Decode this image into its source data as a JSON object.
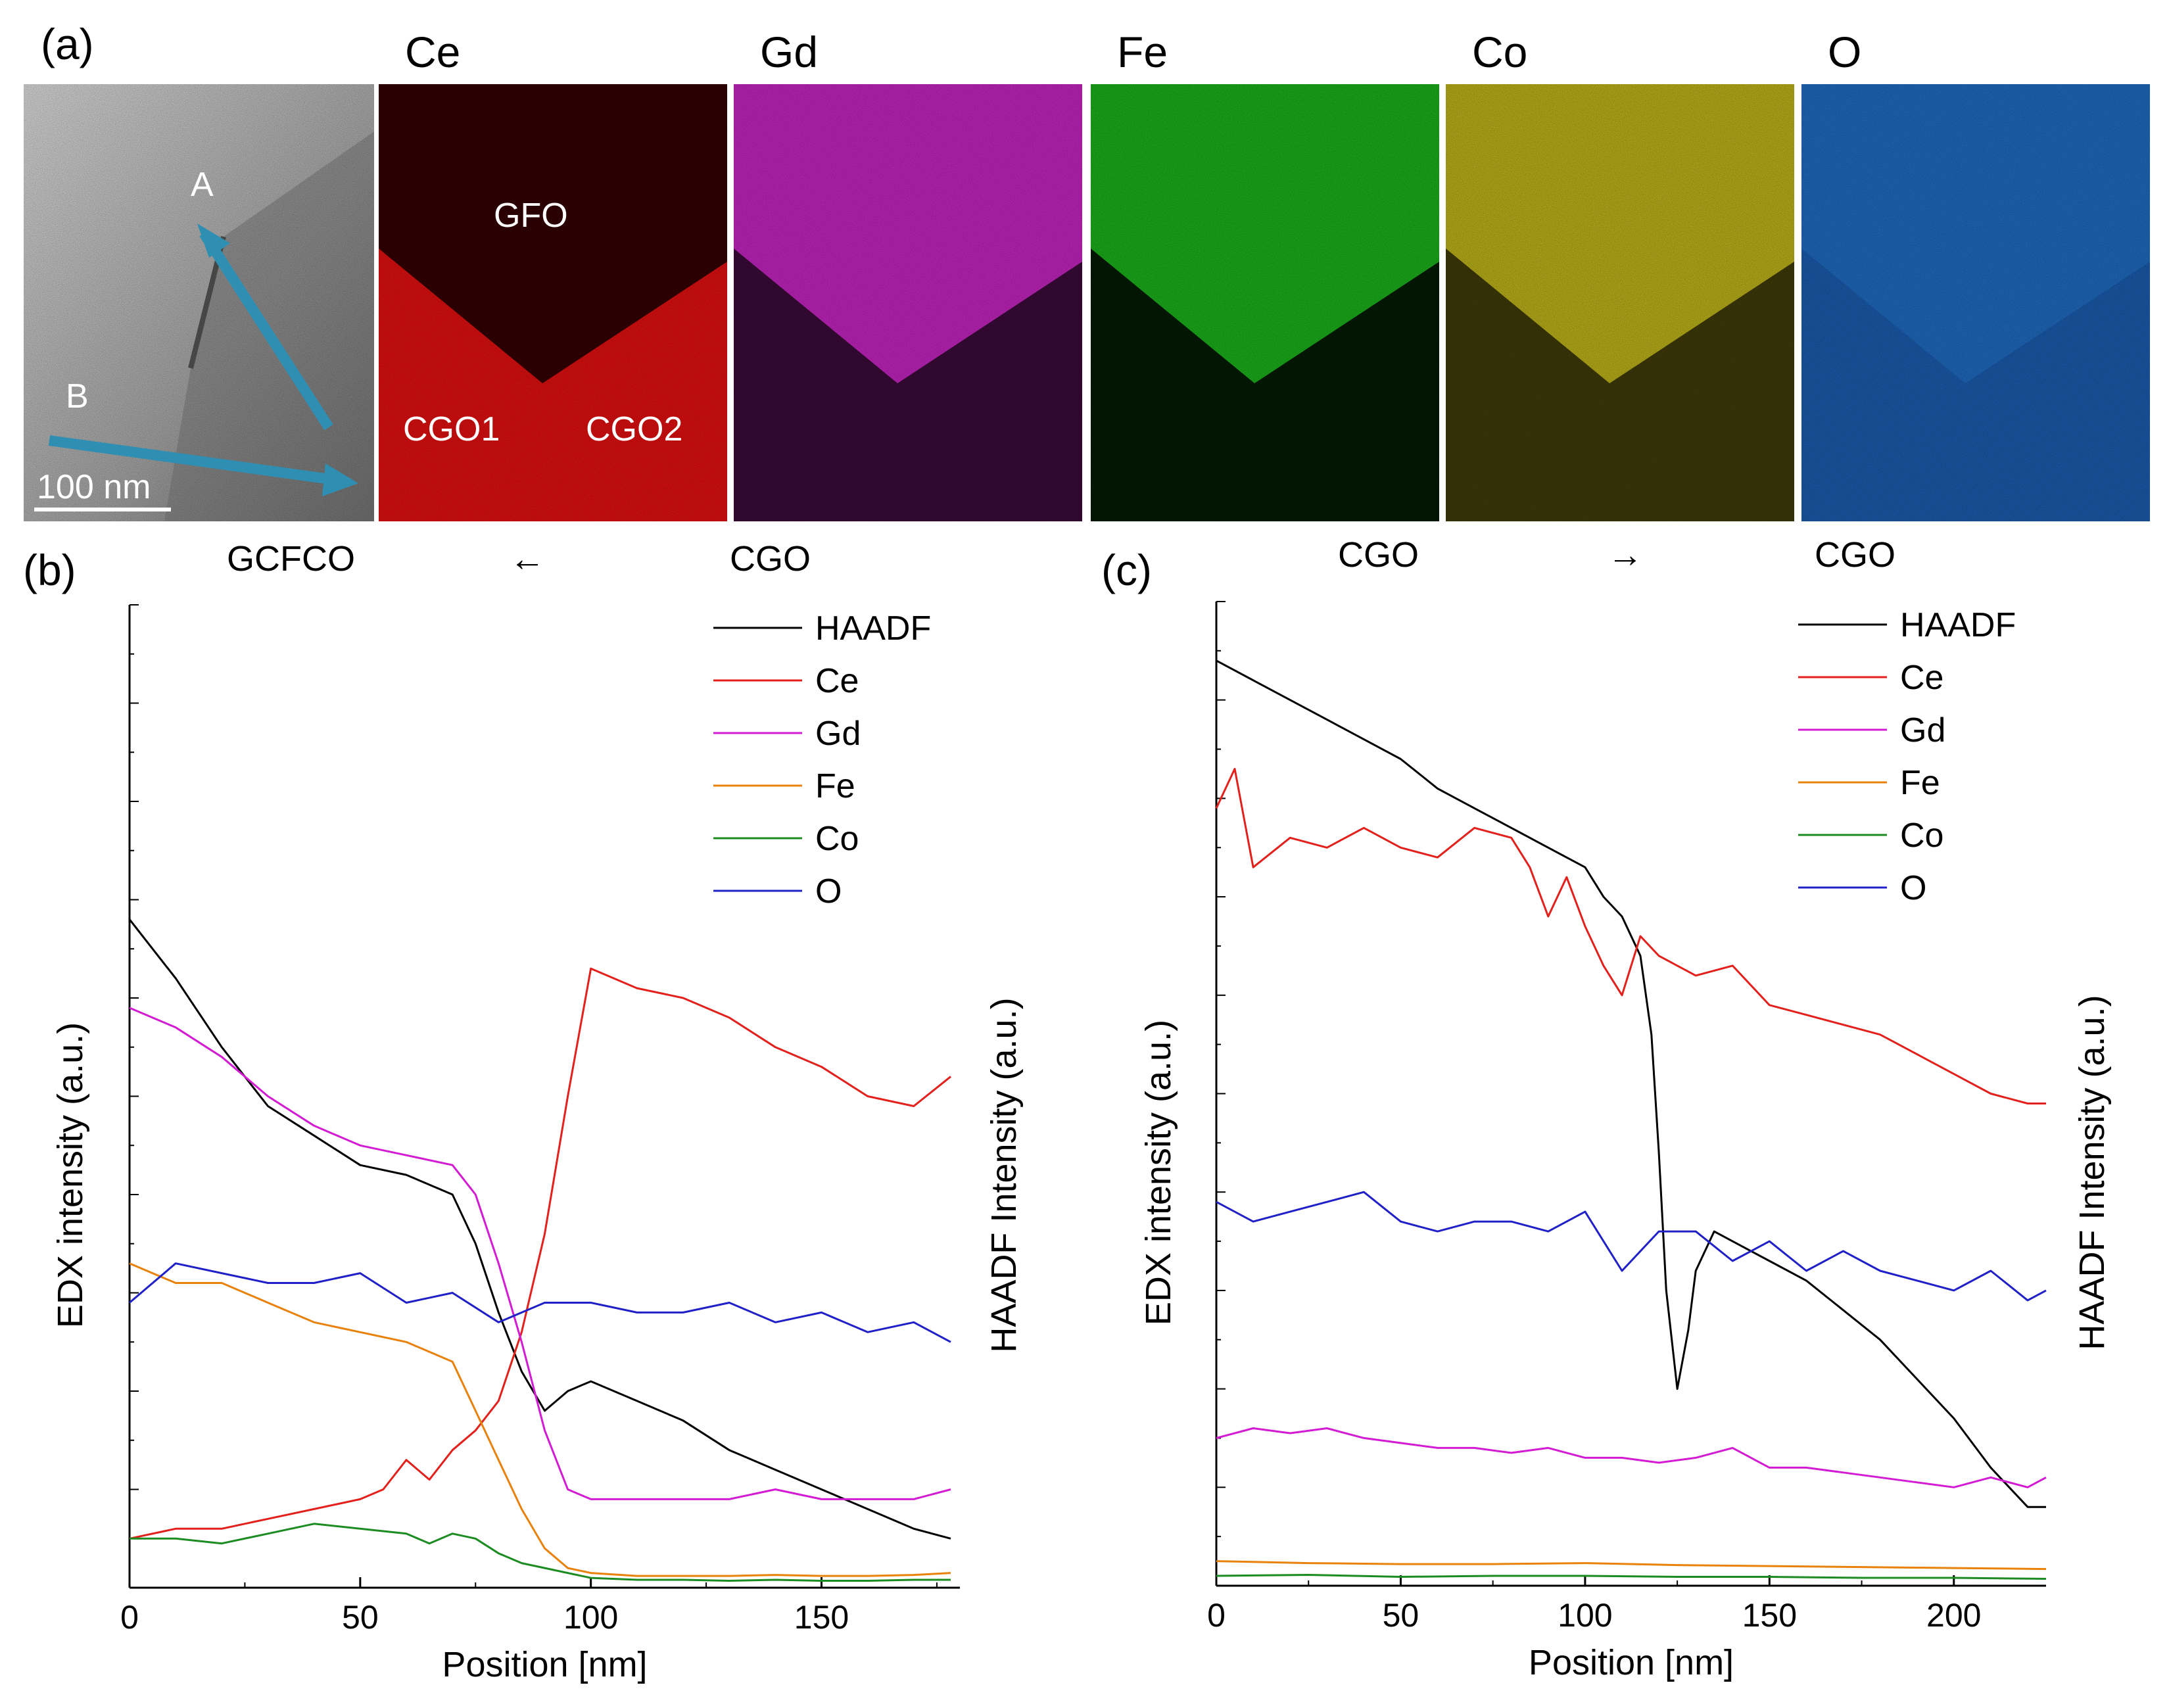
{
  "panel_a": {
    "label": "(a)",
    "haadf_labels": {
      "a": "A",
      "b": "B",
      "scalebar": "100 nm"
    },
    "maps": [
      {
        "title": "Ce",
        "top": "#330003",
        "bottom": "#e20f10"
      },
      {
        "title": "Gd",
        "top": "#c424c0",
        "bottom": "#3a0a39"
      },
      {
        "title": "Fe",
        "top": "#1bb11b",
        "bottom": "#051a05"
      },
      {
        "title": "Co",
        "top": "#bdb31a",
        "bottom": "#3f3a08"
      },
      {
        "title": "O",
        "top": "#1f6bc0",
        "bottom": "#1a5cae"
      }
    ],
    "ce_labels": {
      "gfo": "GFO",
      "cgo1": "CGO1",
      "cgo2": "CGO2"
    },
    "arrow_color": "#2f8fb3"
  },
  "header_b": {
    "left": "GCFCO",
    "arrow": "←",
    "right": "CGO"
  },
  "header_c": {
    "left": "CGO",
    "arrow": "→",
    "right": "CGO"
  },
  "chart_data": [
    {
      "type": "line",
      "panel_label": "(b)",
      "xlabel": "Position [nm]",
      "ylabel_left": "EDX intensity (a.u.)",
      "ylabel_right": "HAADF Intensity (a.u.)",
      "xlim": [
        0,
        180
      ],
      "ylim": [
        0,
        100
      ],
      "xticks": [
        0,
        50,
        100,
        150
      ],
      "legend": "top-right",
      "series": [
        {
          "name": "HAADF",
          "color": "#000000",
          "x": [
            0,
            10,
            20,
            30,
            40,
            50,
            60,
            70,
            75,
            80,
            85,
            90,
            95,
            100,
            110,
            120,
            130,
            140,
            150,
            160,
            170,
            178
          ],
          "y": [
            68,
            62,
            55,
            49,
            46,
            43,
            42,
            40,
            35,
            28,
            22,
            18,
            20,
            21,
            19,
            17,
            14,
            12,
            10,
            8,
            6,
            5
          ]
        },
        {
          "name": "Ce",
          "color": "#e3201b",
          "x": [
            0,
            10,
            20,
            30,
            40,
            50,
            55,
            60,
            65,
            70,
            75,
            80,
            85,
            90,
            95,
            100,
            110,
            120,
            130,
            140,
            150,
            160,
            170,
            178
          ],
          "y": [
            5,
            6,
            6,
            7,
            8,
            9,
            10,
            13,
            11,
            14,
            16,
            19,
            26,
            36,
            50,
            63,
            61,
            60,
            58,
            55,
            53,
            50,
            49,
            52
          ]
        },
        {
          "name": "Gd",
          "color": "#d41bd4",
          "x": [
            0,
            10,
            20,
            30,
            40,
            50,
            60,
            70,
            75,
            80,
            85,
            90,
            95,
            100,
            110,
            120,
            130,
            140,
            150,
            160,
            170,
            178
          ],
          "y": [
            59,
            57,
            54,
            50,
            47,
            45,
            44,
            43,
            40,
            33,
            25,
            16,
            10,
            9,
            9,
            9,
            9,
            10,
            9,
            9,
            9,
            10
          ]
        },
        {
          "name": "Fe",
          "color": "#e8820c",
          "x": [
            0,
            10,
            20,
            30,
            40,
            50,
            60,
            70,
            75,
            80,
            85,
            90,
            95,
            100,
            110,
            120,
            130,
            140,
            150,
            160,
            170,
            178
          ],
          "y": [
            33,
            31,
            31,
            29,
            27,
            26,
            25,
            23,
            18,
            13,
            8,
            4,
            2,
            1.5,
            1.2,
            1.2,
            1.2,
            1.3,
            1.2,
            1.2,
            1.3,
            1.5
          ]
        },
        {
          "name": "Co",
          "color": "#1c8c22",
          "x": [
            0,
            10,
            20,
            30,
            40,
            50,
            60,
            65,
            70,
            75,
            80,
            85,
            90,
            95,
            100,
            110,
            120,
            130,
            140,
            150,
            160,
            170,
            178
          ],
          "y": [
            5,
            5,
            4.5,
            5.5,
            6.5,
            6,
            5.5,
            4.5,
            5.5,
            5,
            3.5,
            2.5,
            2,
            1.5,
            1,
            0.8,
            0.8,
            0.7,
            0.8,
            0.7,
            0.7,
            0.8,
            0.8
          ]
        },
        {
          "name": "O",
          "color": "#2020c8",
          "x": [
            0,
            10,
            20,
            30,
            40,
            50,
            60,
            70,
            80,
            90,
            100,
            110,
            120,
            130,
            140,
            150,
            160,
            170,
            178
          ],
          "y": [
            29,
            33,
            32,
            31,
            31,
            32,
            29,
            30,
            27,
            29,
            29,
            28,
            28,
            29,
            27,
            28,
            26,
            27,
            25
          ]
        }
      ]
    },
    {
      "type": "line",
      "panel_label": "(c)",
      "xlabel": "Position [nm]",
      "ylabel_left": "EDX intensity (a.u.)",
      "ylabel_right": "HAADF Intensity (a.u.)",
      "xlim": [
        0,
        225
      ],
      "ylim": [
        0,
        100
      ],
      "xticks": [
        0,
        50,
        100,
        150,
        200
      ],
      "legend": "top-right",
      "series": [
        {
          "name": "HAADF",
          "color": "#000000",
          "x": [
            0,
            10,
            20,
            30,
            40,
            50,
            60,
            70,
            80,
            90,
            100,
            105,
            110,
            115,
            118,
            120,
            122,
            125,
            128,
            130,
            135,
            140,
            150,
            160,
            170,
            180,
            190,
            200,
            210,
            220,
            225
          ],
          "y": [
            94,
            92,
            90,
            88,
            86,
            84,
            81,
            79,
            77,
            75,
            73,
            70,
            68,
            64,
            56,
            44,
            30,
            20,
            26,
            32,
            36,
            35,
            33,
            31,
            28,
            25,
            21,
            17,
            12,
            8,
            8
          ]
        },
        {
          "name": "Ce",
          "color": "#e3201b",
          "x": [
            0,
            5,
            10,
            20,
            30,
            40,
            50,
            60,
            70,
            80,
            85,
            90,
            95,
            100,
            105,
            110,
            115,
            120,
            130,
            140,
            150,
            160,
            170,
            180,
            190,
            200,
            210,
            220,
            225
          ],
          "y": [
            79,
            83,
            73,
            76,
            75,
            77,
            75,
            74,
            77,
            76,
            73,
            68,
            72,
            67,
            63,
            60,
            66,
            64,
            62,
            63,
            59,
            58,
            57,
            56,
            54,
            52,
            50,
            49,
            49
          ]
        },
        {
          "name": "Gd",
          "color": "#d41bd4",
          "x": [
            0,
            10,
            20,
            30,
            40,
            50,
            60,
            70,
            80,
            90,
            100,
            110,
            120,
            130,
            140,
            150,
            160,
            170,
            180,
            190,
            200,
            210,
            220,
            225
          ],
          "y": [
            15,
            16,
            15.5,
            16,
            15,
            14.5,
            14,
            14,
            13.5,
            14,
            13,
            13,
            12.5,
            13,
            14,
            12,
            12,
            11.5,
            11,
            10.5,
            10,
            11,
            10,
            11
          ]
        },
        {
          "name": "Fe",
          "color": "#e8820c",
          "x": [
            0,
            25,
            50,
            75,
            100,
            125,
            150,
            175,
            200,
            225
          ],
          "y": [
            2.5,
            2.3,
            2.2,
            2.2,
            2.3,
            2.1,
            2,
            1.9,
            1.8,
            1.7
          ]
        },
        {
          "name": "Co",
          "color": "#1c8c22",
          "x": [
            0,
            25,
            50,
            75,
            100,
            125,
            150,
            175,
            200,
            225
          ],
          "y": [
            1,
            1.1,
            0.9,
            1,
            1,
            0.9,
            0.9,
            0.8,
            0.8,
            0.7
          ]
        },
        {
          "name": "O",
          "color": "#2020c8",
          "x": [
            0,
            10,
            20,
            30,
            40,
            50,
            60,
            70,
            80,
            90,
            100,
            110,
            120,
            130,
            140,
            150,
            160,
            170,
            180,
            190,
            200,
            210,
            220,
            225
          ],
          "y": [
            39,
            37,
            38,
            39,
            40,
            37,
            36,
            37,
            37,
            36,
            38,
            32,
            36,
            36,
            33,
            35,
            32,
            34,
            32,
            31,
            30,
            32,
            29,
            30
          ]
        }
      ]
    }
  ]
}
